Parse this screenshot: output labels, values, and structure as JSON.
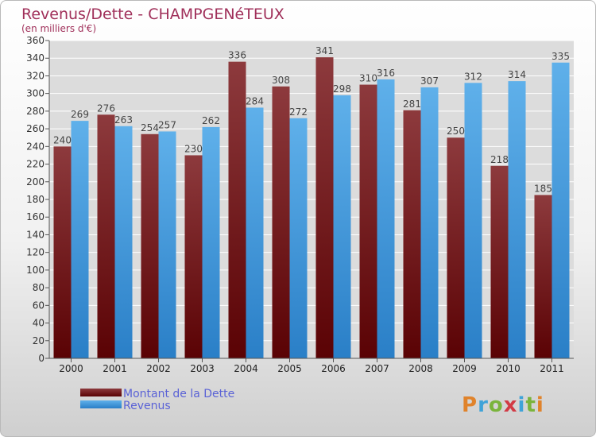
{
  "colors": {
    "debt": "#6b0c0e",
    "debt_light": "#8d3a3d",
    "revenue": "#2a86d2",
    "revenue_light": "#5fb0ea",
    "title": "#a0305a",
    "legend_text": "#5a62d6"
  },
  "logo": {
    "text": "Proxiti"
  },
  "chart_data": {
    "type": "bar",
    "title": "Revenus/Dette - CHAMPGENéTEUX",
    "subtitle": "(en milliers d'€)",
    "categories": [
      "2000",
      "2001",
      "2002",
      "2003",
      "2004",
      "2005",
      "2006",
      "2007",
      "2008",
      "2009",
      "2010",
      "2011"
    ],
    "series": [
      {
        "name": "Montant de la Dette",
        "values": [
          240,
          276,
          254,
          230,
          336,
          308,
          341,
          310,
          281,
          250,
          218,
          185
        ]
      },
      {
        "name": "Revenus",
        "values": [
          269,
          263,
          257,
          262,
          284,
          272,
          298,
          316,
          307,
          312,
          314,
          335
        ]
      }
    ],
    "ylim": [
      0,
      360
    ],
    "yticks": [
      0,
      20,
      40,
      60,
      80,
      100,
      120,
      140,
      160,
      180,
      200,
      220,
      240,
      260,
      280,
      300,
      320,
      340,
      360
    ],
    "grid": true,
    "legend": "bottom-left"
  }
}
